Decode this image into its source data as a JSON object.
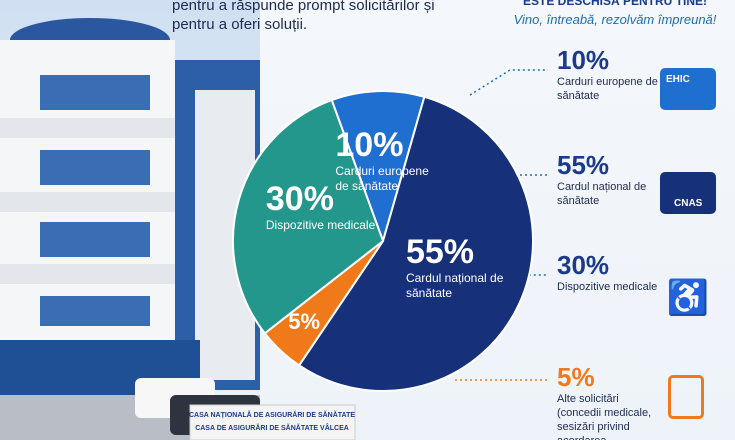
{
  "header": {
    "intro": "pentru a răspunde prompt solicitărilor și pentru a oferi soluții.",
    "headline": "ESTE DESCHISĂ PENTRU TINE!",
    "slogan": "Vino, întreabă, rezolvăm împreună!"
  },
  "sign": {
    "line1": "CASA NAȚIONALĂ DE ASIGURĂRI DE SĂNĂTATE",
    "line2": "CASA DE ASIGURĂRI DE SĂNĂTATE VÂLCEA"
  },
  "chart_data": {
    "type": "pie",
    "categories": [
      "Carduri europene de sănătate",
      "Cardul național de sănătate",
      "Alte solicitări",
      "Dispozitive medicale"
    ],
    "values": [
      10,
      55,
      5,
      30
    ],
    "value_labels": [
      "10%",
      "55%",
      "5%",
      "30%"
    ],
    "colors": [
      "#1f6fd1",
      "#16307a",
      "#f07a1a",
      "#23978b"
    ],
    "legend_note": "(concedii medicale, sesizări privind acordarea",
    "card_labels": {
      "ehic": "EHIC",
      "cnas": "CNAS"
    }
  }
}
